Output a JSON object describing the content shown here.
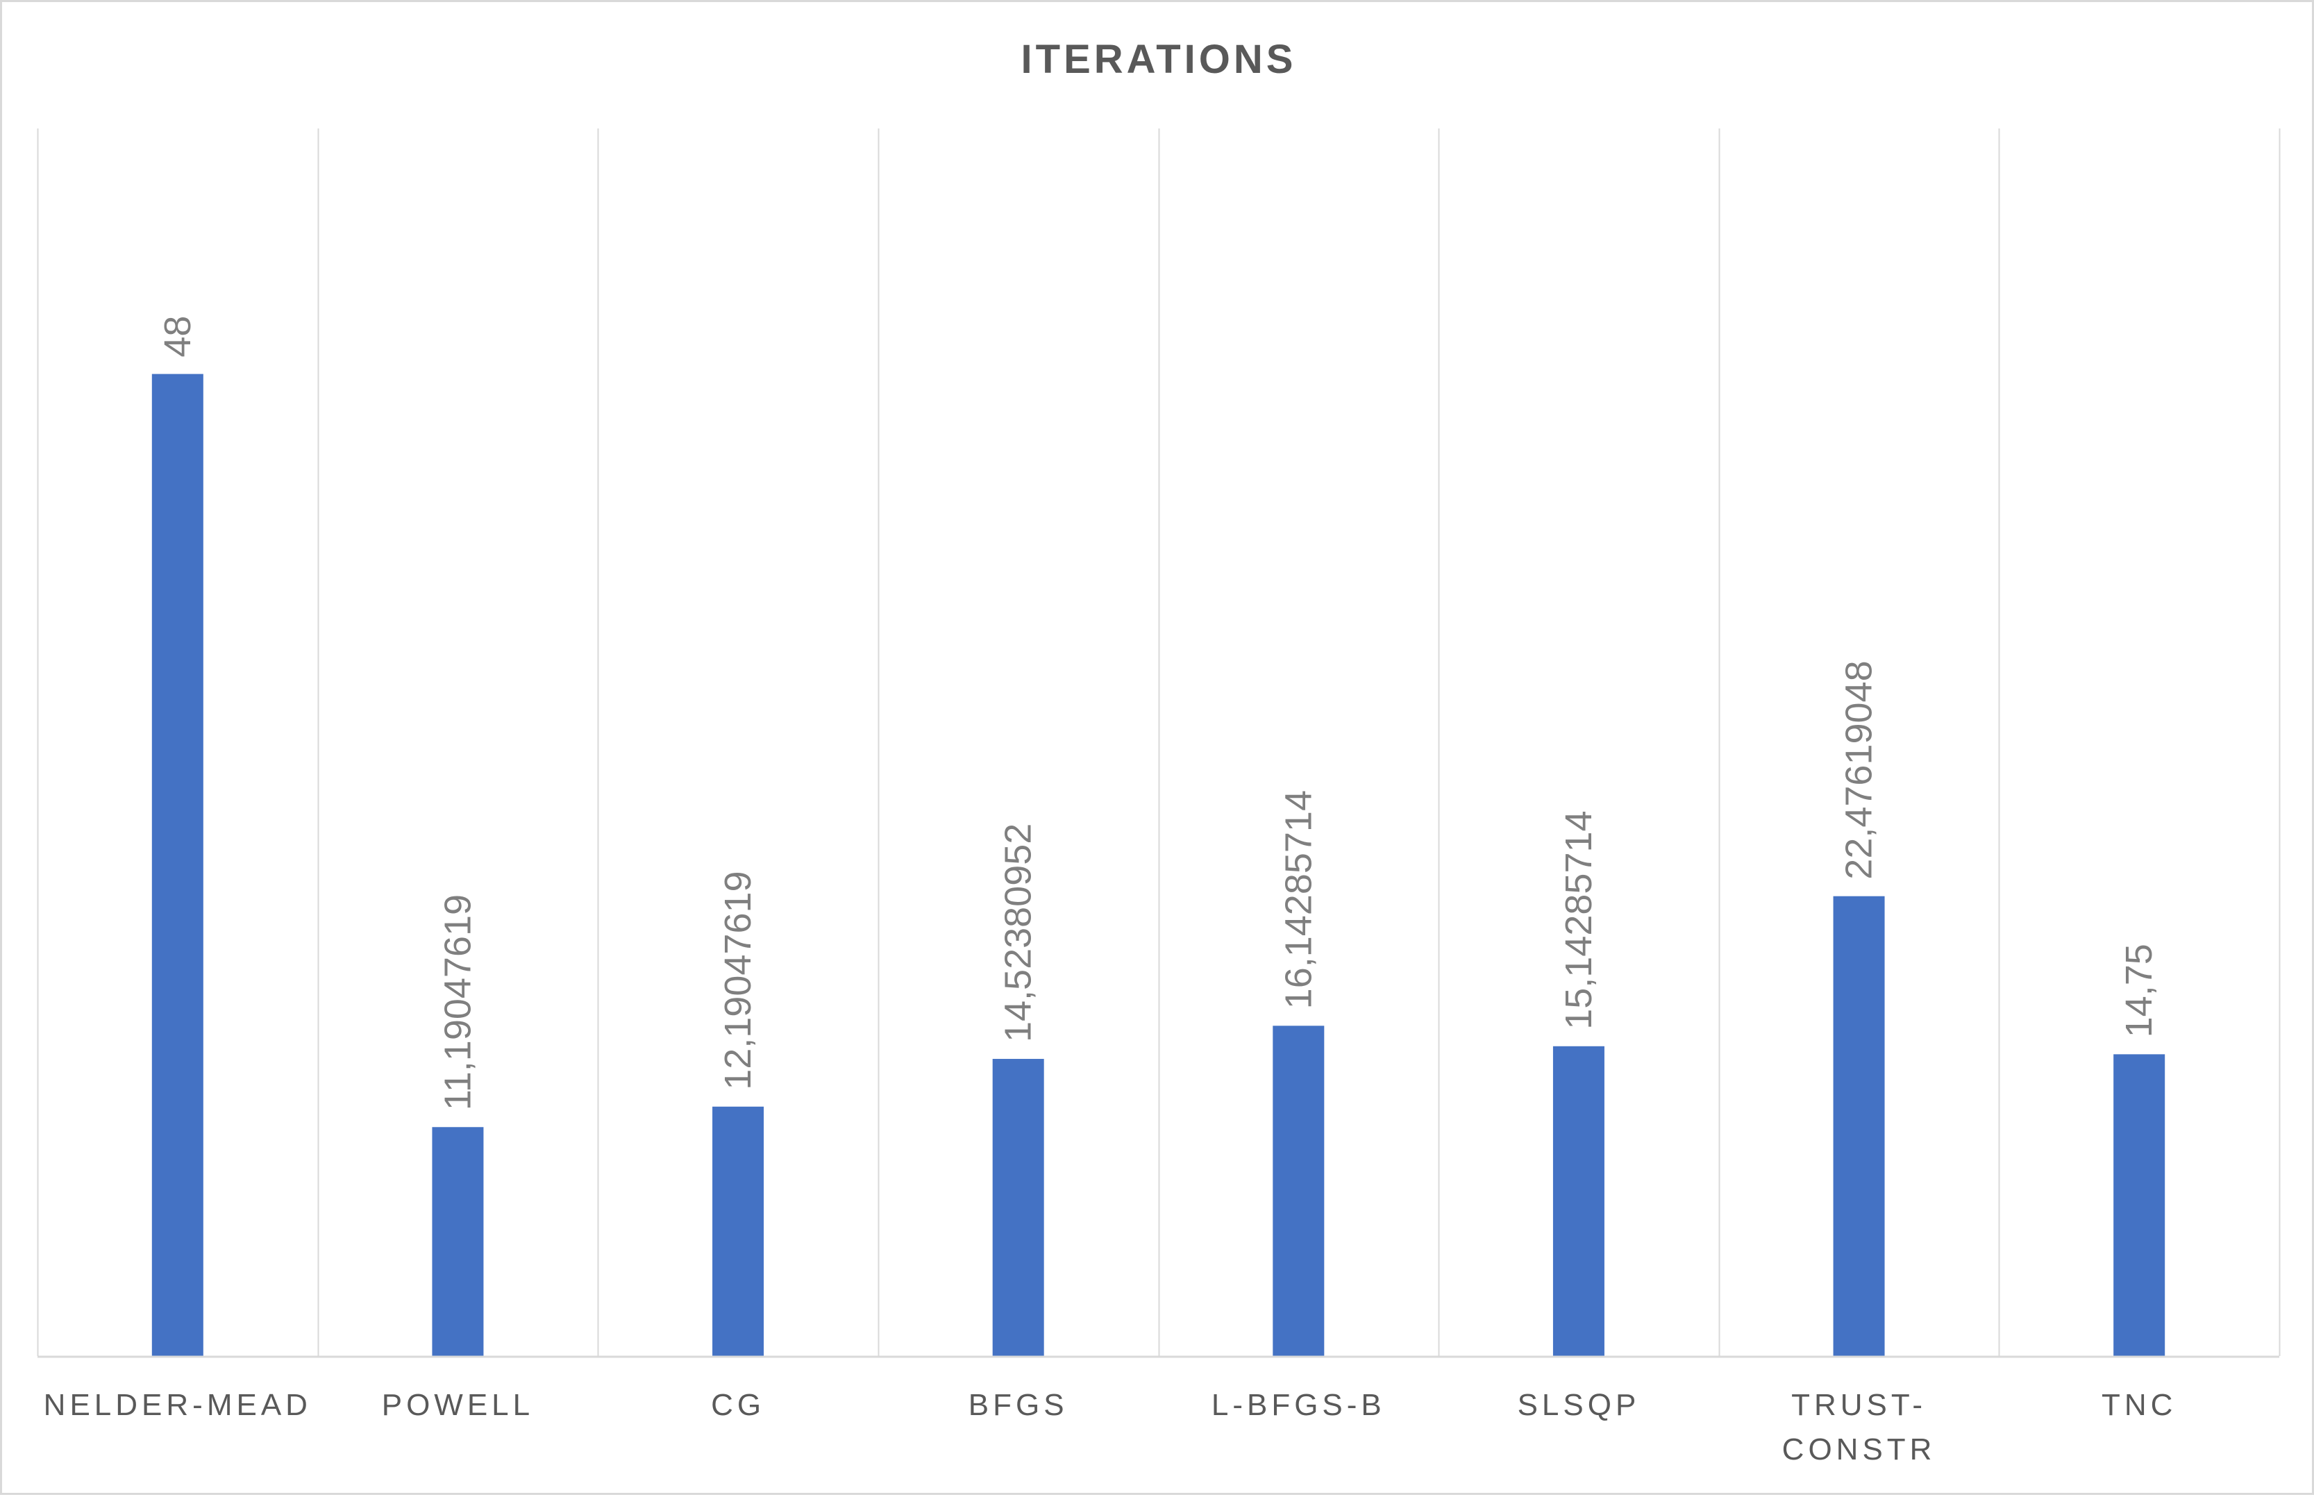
{
  "chart_data": {
    "type": "bar",
    "title": "ITERATIONS",
    "xlabel": "",
    "ylabel": "",
    "categories": [
      "NELDER-MEAD",
      "POWELL",
      "CG",
      "BFGS",
      "L-BFGS-B",
      "SLSQP",
      "TRUST-CONSTR",
      "TNC"
    ],
    "category_labels": [
      [
        "NELDER-MEAD"
      ],
      [
        "POWELL"
      ],
      [
        "CG"
      ],
      [
        "BFGS"
      ],
      [
        "L-BFGS-B"
      ],
      [
        "SLSQP"
      ],
      [
        "TRUST-",
        "CONSTR"
      ],
      [
        "TNC"
      ]
    ],
    "values": [
      48,
      11.19047619,
      12.19047619,
      14.52380952,
      16.14285714,
      15.14285714,
      22.47619048,
      14.75
    ],
    "data_labels": [
      "48",
      "11,19047619",
      "12,19047619",
      "14,52380952",
      "16,14285714",
      "15,14285714",
      "22,47619048",
      "14,75"
    ],
    "ylim": [
      0,
      60
    ],
    "grid": "vertical category dividers",
    "legend": "none",
    "colors": {
      "bar": "#4472C4",
      "grid": "#d9d9d9",
      "axis": "#d9d9d9",
      "title": "#595959",
      "tick_label": "#595959",
      "data_label": "#7f7f7f"
    }
  }
}
